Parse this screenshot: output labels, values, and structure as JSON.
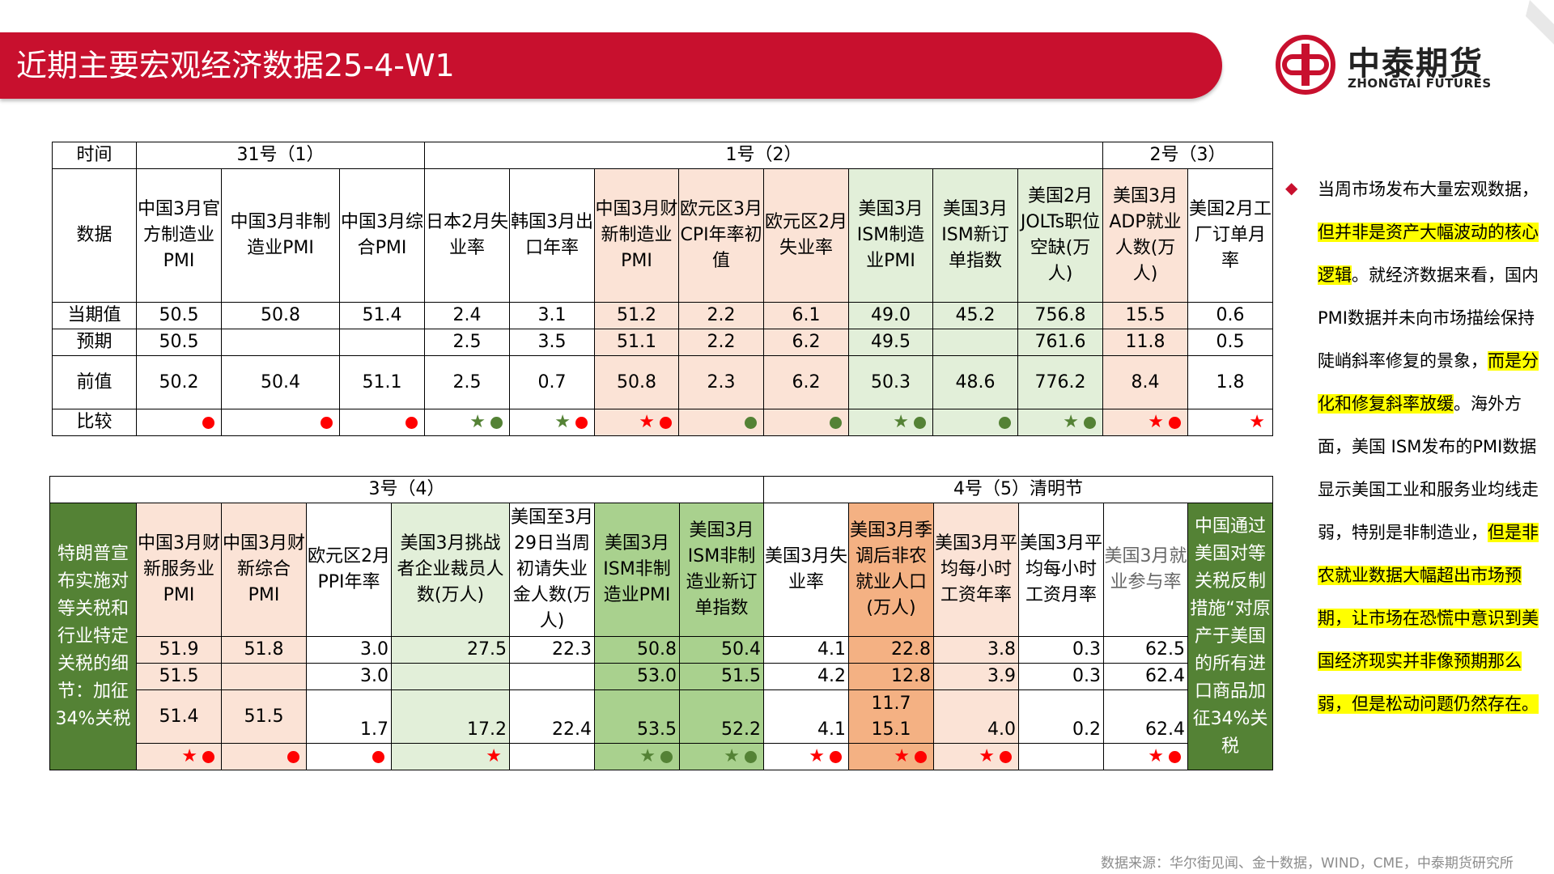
{
  "header": {
    "title": "近期主要宏观经济数据25-4-W1"
  },
  "logo": {
    "name_cn": "中泰期货",
    "name_en": "ZHONGTAI FUTURES",
    "icon": "zhongtai-logo-icon"
  },
  "colors": {
    "brand_red": "#c8102e",
    "pink": "#fbe3d6",
    "light_green": "#e2efd9",
    "mid_green": "#a9d18e",
    "dark_green": "#548235",
    "orange": "#f4b183"
  },
  "table1": {
    "row_labels": {
      "time": "时间",
      "data": "数据",
      "current": "当期值",
      "expected": "预期",
      "previous": "前值",
      "compare": "比较"
    },
    "groups": [
      "31号（1）",
      "1号（2）",
      "2号（3）"
    ],
    "columns": [
      {
        "name": "中国3月官方制造业PMI",
        "current": "50.5",
        "expected": "50.5",
        "previous": "50.2",
        "compare": "●"
      },
      {
        "name": "中国3月非制造业PMI",
        "current": "50.8",
        "expected": "",
        "previous": "50.4",
        "compare": "●"
      },
      {
        "name": "中国3月综合PMI",
        "current": "51.4",
        "expected": "",
        "previous": "51.1",
        "compare": "●"
      },
      {
        "name": "日本2月失业率",
        "current": "2.4",
        "expected": "2.5",
        "previous": "2.5",
        "compare": "★●"
      },
      {
        "name": "韩国3月出口年率",
        "current": "3.1",
        "expected": "3.5",
        "previous": "0.7",
        "compare": "★●"
      },
      {
        "name": "中国3月财新制造业PMI",
        "current": "51.2",
        "expected": "51.1",
        "previous": "50.8",
        "compare": "★●"
      },
      {
        "name": "欧元区3月CPI年率初值",
        "current": "2.2",
        "expected": "2.2",
        "previous": "2.3",
        "compare": "●"
      },
      {
        "name": "欧元区2月失业率",
        "current": "6.1",
        "expected": "6.2",
        "previous": "6.2",
        "compare": "●"
      },
      {
        "name": "美国3月ISM制造业PMI",
        "current": "49.0",
        "expected": "49.5",
        "previous": "50.3",
        "compare": "★●"
      },
      {
        "name": "美国3月ISM新订单指数",
        "current": "45.2",
        "expected": "",
        "previous": "48.6",
        "compare": "●"
      },
      {
        "name": "美国2月JOLTs职位空缺(万人)",
        "current": "756.8",
        "expected": "761.6",
        "previous": "776.2",
        "compare": "★●"
      },
      {
        "name": "美国3月ADP就业人数(万人)",
        "current": "15.5",
        "expected": "11.8",
        "previous": "8.4",
        "compare": "★●"
      },
      {
        "name": "美国2月工厂订单月率",
        "current": "0.6",
        "expected": "0.5",
        "previous": "1.8",
        "compare": "★"
      }
    ]
  },
  "table2": {
    "groups": [
      "3号（4）",
      "4号（5）清明节"
    ],
    "left_note": "特朗普宣布实施对等关税和行业特定关税的细节：加征34%关税",
    "right_note": "中国通过美国对等关税反制措施“对原产于美国的所有进口商品加征34%关税",
    "columns": [
      {
        "name": "中国3月财新服务业PMI",
        "current": "51.9",
        "expected": "51.5",
        "previous": "51.4",
        "compare": "★●"
      },
      {
        "name": "中国3月财新综合PMI",
        "current": "51.8",
        "expected": "",
        "previous": "51.5",
        "compare": "●"
      },
      {
        "name": "欧元区2月PPI年率",
        "current": "3.0",
        "expected": "3.0",
        "previous": "1.7",
        "compare": "●"
      },
      {
        "name": "美国3月挑战者企业裁员人数(万人)",
        "current": "27.5",
        "expected": "",
        "previous": "17.2",
        "compare": "★"
      },
      {
        "name": "美国至3月29日当周初请失业金人数(万人)",
        "current": "22.3",
        "expected": "",
        "previous": "22.4",
        "compare": ""
      },
      {
        "name": "美国3月ISM非制造业PMI",
        "current": "50.8",
        "expected": "53.0",
        "previous": "53.5",
        "compare": "★●"
      },
      {
        "name": "美国3月ISM非制造业新订单指数",
        "current": "50.4",
        "expected": "51.5",
        "previous": "52.2",
        "compare": "★●"
      },
      {
        "name": "美国3月失业率",
        "current": "4.1",
        "expected": "4.2",
        "previous": "4.1",
        "compare": "★●"
      },
      {
        "name": "美国3月季调后非农就业人口(万人)",
        "current": "22.8",
        "expected": "12.8",
        "previous_top": "11.7",
        "previous": "15.1",
        "compare": "★●"
      },
      {
        "name": "美国3月平均每小时工资年率",
        "current": "3.8",
        "expected": "3.9",
        "previous": "4.0",
        "compare": "★●"
      },
      {
        "name": "美国3月平均每小时工资月率",
        "current": "0.3",
        "expected": "0.3",
        "previous": "0.2",
        "compare": ""
      },
      {
        "name": "美国3月就业参与率",
        "current": "62.5",
        "expected": "62.4",
        "previous": "62.4",
        "compare": "★●"
      }
    ]
  },
  "commentary": {
    "bullet": "◆",
    "parts": [
      {
        "text": "当周市场发布大量宏观数据，",
        "highlight": false
      },
      {
        "text": "但并非是资产大幅波动的核心逻辑",
        "highlight": true
      },
      {
        "text": "。就经济数据来看，国内PMI数据并未向市场描绘保持陡峭斜率修复的景象，",
        "highlight": false
      },
      {
        "text": "而是分化和修复斜率放缓",
        "highlight": true
      },
      {
        "text": "。海外方面，美国 ISM发布的PMI数据显示美国工业和服务业均线走弱，特别是非制造业，",
        "highlight": false
      },
      {
        "text": "但是非农就业数据大幅超出市场预期，让市场在恐慌中意识到美国经济现实并非像预期那么弱，但是松动问题仍然存在。",
        "highlight": true
      }
    ]
  },
  "source": "数据来源：华尔街见闻、金十数据，WIND，CME，中泰期货研究所"
}
